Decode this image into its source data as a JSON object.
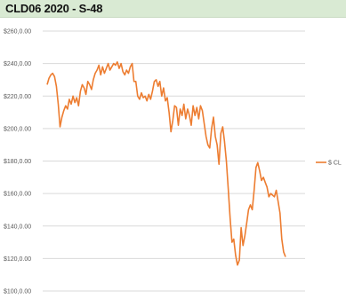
{
  "chart_data": {
    "type": "line",
    "title": "CLD06 2020 - S-48",
    "ylim": [
      100,
      260
    ],
    "yticks": [
      100,
      120,
      140,
      160,
      180,
      200,
      220,
      240,
      260
    ],
    "ytick_labels": [
      "$100,0.00",
      "$120,0.00",
      "$140,0.00",
      "$160,0.00",
      "$180,0.00",
      "$200,0.00",
      "$220,0.00",
      "$240,0.00",
      "$260,0.00"
    ],
    "grid": true,
    "legend_position": "right",
    "series": [
      {
        "name": "$ CL",
        "color": "#ed7d31",
        "values": [
          227,
          231,
          233,
          234,
          232,
          226,
          215,
          201,
          207,
          211,
          214,
          212,
          218,
          215,
          220,
          216,
          219,
          214,
          223,
          227,
          225,
          221,
          229,
          227,
          224,
          230,
          234,
          236,
          239,
          233,
          238,
          234,
          237,
          240,
          236,
          238,
          240,
          239,
          241,
          237,
          240,
          235,
          233,
          236,
          234,
          238,
          240,
          229,
          229,
          220,
          218,
          222,
          219,
          220,
          217,
          221,
          218,
          223,
          229,
          230,
          226,
          229,
          220,
          225,
          217,
          219,
          210,
          198,
          205,
          214,
          213,
          202,
          212,
          208,
          215,
          206,
          212,
          208,
          202,
          214,
          208,
          213,
          206,
          214,
          211,
          203,
          195,
          190,
          188,
          200,
          207,
          195,
          190,
          178,
          197,
          201,
          192,
          180,
          163,
          145,
          130,
          132,
          122,
          116,
          119,
          139,
          128,
          134,
          142,
          150,
          153,
          150,
          162,
          176,
          179,
          174,
          168,
          170,
          167,
          164,
          158,
          160,
          159,
          158,
          162,
          155,
          148,
          132,
          124,
          121
        ]
      }
    ]
  }
}
